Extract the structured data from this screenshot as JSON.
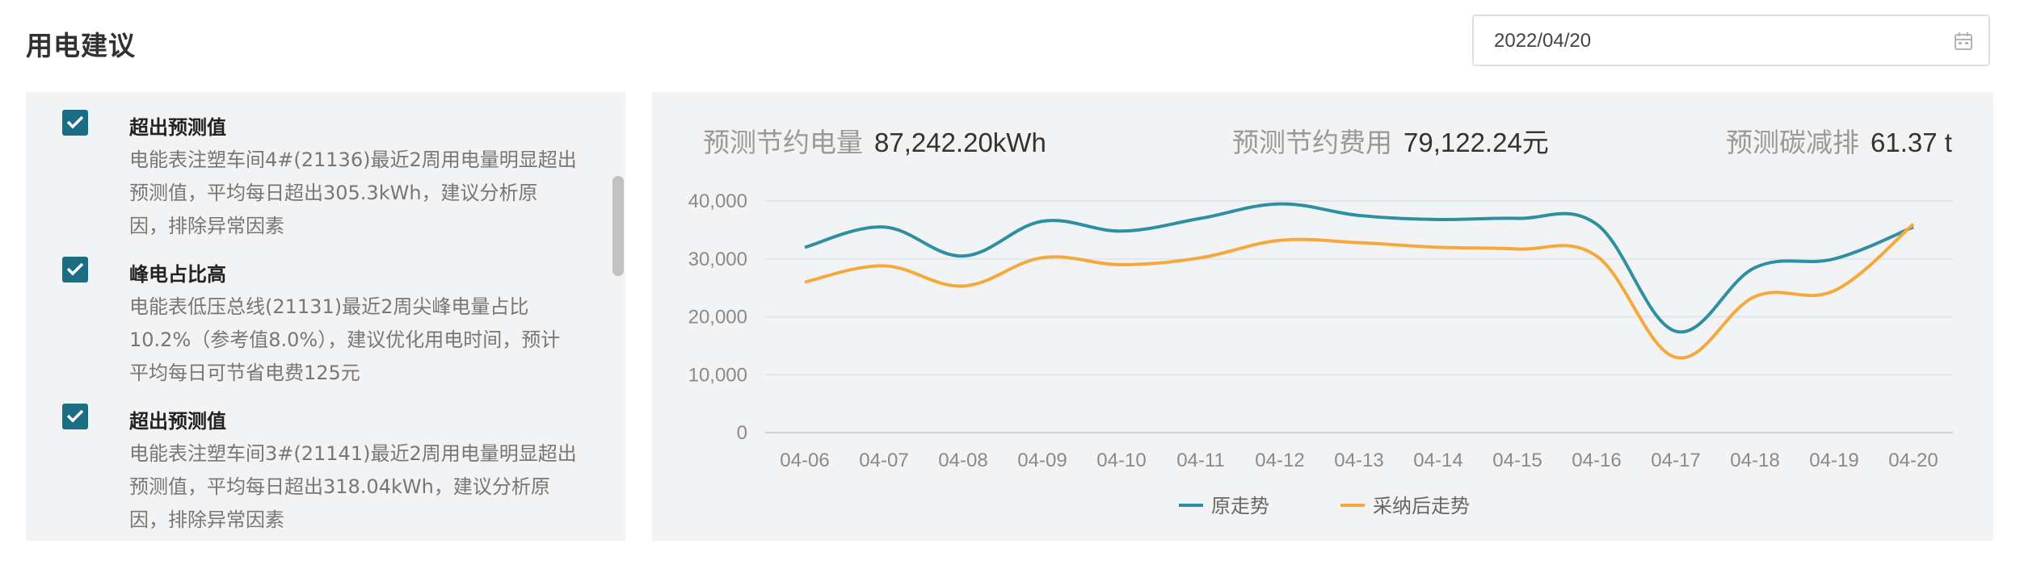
{
  "page_title": "用电建议",
  "date_picker": {
    "value": "2022/04/20",
    "icon": "calendar-icon"
  },
  "suggestions": [
    {
      "checked": true,
      "title": "超出预测值",
      "desc_lines": [
        "电能表注塑车间4#(21136)最近2周用电量明显超出",
        "预测值，平均每日超出305.3kWh，建议分析原",
        "因，排除异常因素"
      ]
    },
    {
      "checked": true,
      "title": "峰电占比高",
      "desc_lines": [
        "电能表低压总线(21131)最近2周尖峰电量占比",
        "10.2%（参考值8.0%），建议优化用电时间，预计",
        "平均每日可节省电费125元"
      ]
    },
    {
      "checked": true,
      "title": "超出预测值",
      "desc_lines": [
        "电能表注塑车间3#(21141)最近2周用电量明显超出",
        "预测值，平均每日超出318.04kWh，建议分析原",
        "因，排除异常因素"
      ]
    }
  ],
  "stats": {
    "energy_saving": {
      "label": "预测节约电量",
      "value": "87,242.20kWh"
    },
    "cost_saving": {
      "label": "预测节约费用",
      "value": "79,122.24元"
    },
    "carbon_reduction": {
      "label": "预测碳减排",
      "value": "61.37 t"
    }
  },
  "chart_data": {
    "type": "line",
    "smooth": true,
    "categories": [
      "04-06",
      "04-07",
      "04-08",
      "04-09",
      "04-10",
      "04-11",
      "04-12",
      "04-13",
      "04-14",
      "04-15",
      "04-16",
      "04-17",
      "04-18",
      "04-19",
      "04-20"
    ],
    "series": [
      {
        "name": "原走势",
        "color": "#2e8fa0",
        "values": [
          32000,
          35500,
          30500,
          36500,
          34800,
          37000,
          39500,
          37500,
          36800,
          37000,
          36000,
          17500,
          28500,
          30000,
          35500
        ]
      },
      {
        "name": "采纳后走势",
        "color": "#f5a93c",
        "values": [
          26000,
          28800,
          25300,
          30200,
          29000,
          30200,
          33200,
          32800,
          32000,
          31700,
          30500,
          13000,
          23500,
          24500,
          36000
        ]
      }
    ],
    "ylim": [
      0,
      40000
    ],
    "yticks": [
      "0",
      "10,000",
      "20,000",
      "30,000",
      "40,000"
    ],
    "grid": true,
    "legend_position": "bottom-center"
  }
}
